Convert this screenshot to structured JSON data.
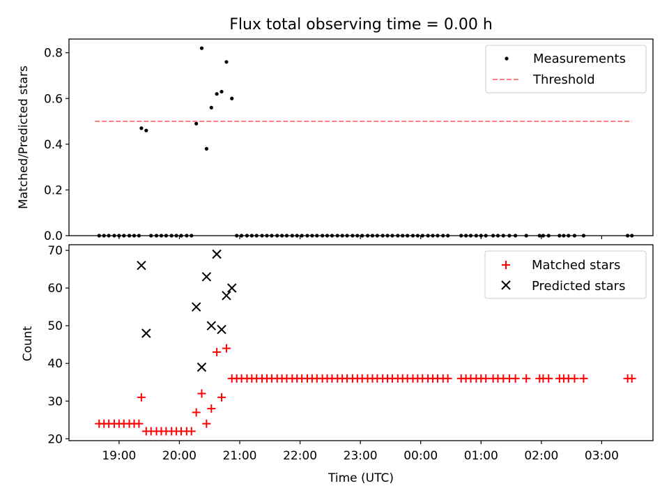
{
  "title": "Flux total observing time = 0.00 h",
  "x_tick_labels": [
    "19:00",
    "20:00",
    "21:00",
    "22:00",
    "23:00",
    "00:00",
    "01:00",
    "02:00",
    "03:00"
  ],
  "chart_data": [
    {
      "type": "scatter",
      "panel": "top",
      "ylabel": "Matched/Predicted stars",
      "ylim": [
        0,
        0.86
      ],
      "yticks": [
        0.0,
        0.2,
        0.4,
        0.6,
        0.8
      ],
      "ytick_labels": [
        "0.0",
        "0.2",
        "0.4",
        "0.6",
        "0.8"
      ],
      "xlim": [
        18.17,
        27.85
      ],
      "legend_position": "top-right",
      "series": [
        {
          "name": "Measurements",
          "color": "#000000",
          "marker": "dot",
          "x": [
            18.67,
            18.75,
            18.83,
            18.92,
            19.0,
            19.08,
            19.17,
            19.25,
            19.33,
            19.37,
            19.45,
            19.53,
            19.62,
            19.7,
            19.78,
            19.87,
            19.95,
            20.03,
            20.12,
            20.2,
            20.28,
            20.37,
            20.45,
            20.53,
            20.62,
            20.7,
            20.78,
            20.87,
            20.95,
            21.03,
            21.12,
            21.2,
            21.28,
            21.37,
            21.45,
            21.53,
            21.62,
            21.7,
            21.78,
            21.87,
            21.95,
            22.03,
            22.12,
            22.2,
            22.28,
            22.37,
            22.45,
            22.53,
            22.62,
            22.7,
            22.78,
            22.87,
            22.95,
            23.03,
            23.12,
            23.2,
            23.28,
            23.37,
            23.45,
            23.53,
            23.62,
            23.7,
            23.78,
            23.87,
            23.95,
            24.03,
            24.12,
            24.2,
            24.28,
            24.37,
            24.45,
            24.67,
            24.75,
            24.83,
            24.92,
            25.0,
            25.08,
            25.2,
            25.28,
            25.37,
            25.47,
            25.57,
            25.75,
            25.97,
            26.03,
            26.12,
            26.3,
            26.37,
            26.45,
            26.55,
            26.7,
            27.43,
            27.5
          ],
          "y": [
            0,
            0,
            0,
            0,
            0,
            0,
            0,
            0,
            0,
            0.47,
            0.46,
            0,
            0,
            0,
            0,
            0,
            0,
            0,
            0,
            0,
            0.49,
            0.82,
            0.38,
            0.56,
            0.62,
            0.63,
            0.76,
            0.6,
            0,
            0,
            0,
            0,
            0,
            0,
            0,
            0,
            0,
            0,
            0,
            0,
            0,
            0,
            0,
            0,
            0,
            0,
            0,
            0,
            0,
            0,
            0,
            0,
            0,
            0,
            0,
            0,
            0,
            0,
            0,
            0,
            0,
            0,
            0,
            0,
            0,
            0,
            0,
            0,
            0,
            0,
            0,
            0,
            0,
            0,
            0,
            0,
            0,
            0,
            0,
            0,
            0,
            0,
            0,
            0,
            0,
            0,
            0,
            0,
            0,
            0,
            0,
            0,
            0
          ]
        },
        {
          "name": "Threshold",
          "color": "#ff8080",
          "style": "dashed",
          "x": [
            18.6,
            27.5
          ],
          "y": [
            0.5,
            0.5
          ]
        }
      ]
    },
    {
      "type": "scatter",
      "panel": "bottom",
      "xlabel": "Time (UTC)",
      "ylabel": "Count",
      "ylim": [
        19.5,
        71.5
      ],
      "yticks": [
        20,
        30,
        40,
        50,
        60,
        70
      ],
      "ytick_labels": [
        "20",
        "30",
        "40",
        "50",
        "60",
        "70"
      ],
      "xlim": [
        18.17,
        27.85
      ],
      "legend_position": "top-right",
      "series": [
        {
          "name": "Matched stars",
          "color": "#ff0000",
          "marker": "plus",
          "x": [
            18.67,
            18.75,
            18.83,
            18.92,
            19.0,
            19.08,
            19.17,
            19.25,
            19.33,
            19.37,
            19.45,
            19.53,
            19.62,
            19.7,
            19.78,
            19.87,
            19.95,
            20.03,
            20.12,
            20.2,
            20.28,
            20.37,
            20.45,
            20.53,
            20.62,
            20.7,
            20.78,
            20.87,
            20.95,
            21.03,
            21.12,
            21.2,
            21.28,
            21.37,
            21.45,
            21.53,
            21.62,
            21.7,
            21.78,
            21.87,
            21.95,
            22.03,
            22.12,
            22.2,
            22.28,
            22.37,
            22.45,
            22.53,
            22.62,
            22.7,
            22.78,
            22.87,
            22.95,
            23.03,
            23.12,
            23.2,
            23.28,
            23.37,
            23.45,
            23.53,
            23.62,
            23.7,
            23.78,
            23.87,
            23.95,
            24.03,
            24.12,
            24.2,
            24.28,
            24.37,
            24.45,
            24.67,
            24.75,
            24.83,
            24.92,
            25.0,
            25.08,
            25.2,
            25.28,
            25.37,
            25.47,
            25.57,
            25.75,
            25.97,
            26.03,
            26.12,
            26.3,
            26.37,
            26.45,
            26.55,
            26.7,
            27.43,
            27.5
          ],
          "y": [
            24,
            24,
            24,
            24,
            24,
            24,
            24,
            24,
            24,
            31,
            22,
            22,
            22,
            22,
            22,
            22,
            22,
            22,
            22,
            22,
            27,
            32,
            24,
            28,
            43,
            31,
            44,
            36,
            36,
            36,
            36,
            36,
            36,
            36,
            36,
            36,
            36,
            36,
            36,
            36,
            36,
            36,
            36,
            36,
            36,
            36,
            36,
            36,
            36,
            36,
            36,
            36,
            36,
            36,
            36,
            36,
            36,
            36,
            36,
            36,
            36,
            36,
            36,
            36,
            36,
            36,
            36,
            36,
            36,
            36,
            36,
            36,
            36,
            36,
            36,
            36,
            36,
            36,
            36,
            36,
            36,
            36,
            36,
            36,
            36,
            36,
            36,
            36,
            36,
            36,
            36,
            36,
            36
          ]
        },
        {
          "name": "Predicted stars",
          "color": "#000000",
          "marker": "x",
          "x": [
            19.37,
            19.45,
            20.28,
            20.37,
            20.45,
            20.53,
            20.62,
            20.7,
            20.78,
            20.87
          ],
          "y": [
            66,
            48,
            55,
            39,
            63,
            50,
            69,
            49,
            58,
            60
          ]
        }
      ]
    }
  ]
}
